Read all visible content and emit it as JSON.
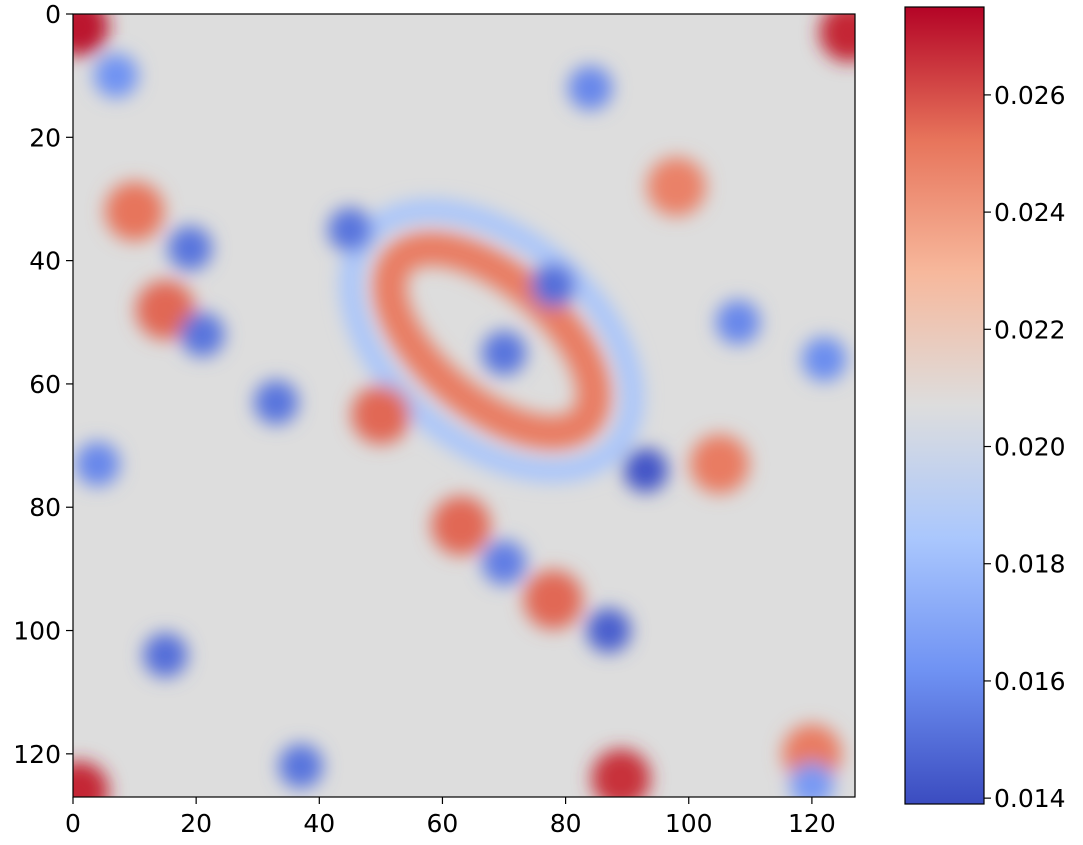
{
  "chart_data": {
    "type": "heatmap",
    "title": "",
    "xlabel": "",
    "ylabel": "",
    "grid_size": [
      128,
      128
    ],
    "xlim": [
      0,
      127
    ],
    "ylim": [
      127,
      0
    ],
    "x_ticks": [
      0,
      20,
      40,
      60,
      80,
      100,
      120
    ],
    "x_tick_labels": [
      "0",
      "20",
      "40",
      "60",
      "80",
      "100",
      "120"
    ],
    "y_ticks": [
      0,
      20,
      40,
      60,
      80,
      100,
      120
    ],
    "y_tick_labels": [
      "0",
      "20",
      "40",
      "60",
      "80",
      "100",
      "120"
    ],
    "colormap": "coolwarm",
    "colormap_stops": [
      "#3b4cc0",
      "#6f92f3",
      "#aac7fd",
      "#dddddd",
      "#f7b89c",
      "#e7745b",
      "#b40426"
    ],
    "vmin": 0.0139,
    "vmax": 0.0275,
    "colorbar": {
      "ticks": [
        0.014,
        0.016,
        0.018,
        0.02,
        0.022,
        0.024,
        0.026
      ],
      "tick_labels": [
        "0.014",
        "0.016",
        "0.018",
        "0.020",
        "0.022",
        "0.024",
        "0.026"
      ]
    },
    "features": {
      "hot_spots": [
        {
          "x": 1,
          "y": 2,
          "value": 0.0272
        },
        {
          "x": 126,
          "y": 3,
          "value": 0.0268
        },
        {
          "x": 1,
          "y": 126,
          "value": 0.0268
        },
        {
          "x": 89,
          "y": 124,
          "value": 0.0266
        },
        {
          "x": 63,
          "y": 83,
          "value": 0.0255
        },
        {
          "x": 78,
          "y": 95,
          "value": 0.0255
        },
        {
          "x": 15,
          "y": 48,
          "value": 0.0255
        },
        {
          "x": 10,
          "y": 32,
          "value": 0.0252
        },
        {
          "x": 50,
          "y": 65,
          "value": 0.0255
        },
        {
          "x": 105,
          "y": 73,
          "value": 0.025
        },
        {
          "x": 98,
          "y": 28,
          "value": 0.0248
        },
        {
          "x": 120,
          "y": 120,
          "value": 0.025
        }
      ],
      "cold_spots": [
        {
          "x": 93,
          "y": 74,
          "value": 0.0142
        },
        {
          "x": 87,
          "y": 100,
          "value": 0.0145
        },
        {
          "x": 21,
          "y": 52,
          "value": 0.0152
        },
        {
          "x": 45,
          "y": 35,
          "value": 0.0152
        },
        {
          "x": 78,
          "y": 44,
          "value": 0.015
        },
        {
          "x": 70,
          "y": 55,
          "value": 0.0152
        },
        {
          "x": 19,
          "y": 38,
          "value": 0.0152
        },
        {
          "x": 15,
          "y": 104,
          "value": 0.015
        },
        {
          "x": 37,
          "y": 122,
          "value": 0.0152
        },
        {
          "x": 33,
          "y": 63,
          "value": 0.0152
        },
        {
          "x": 70,
          "y": 89,
          "value": 0.0155
        },
        {
          "x": 84,
          "y": 12,
          "value": 0.0158
        },
        {
          "x": 108,
          "y": 50,
          "value": 0.0158
        },
        {
          "x": 4,
          "y": 73,
          "value": 0.0158
        },
        {
          "x": 7,
          "y": 10,
          "value": 0.0162
        },
        {
          "x": 122,
          "y": 56,
          "value": 0.016
        },
        {
          "x": 120,
          "y": 125,
          "value": 0.0165
        }
      ],
      "ring": {
        "center_x": 68,
        "center_y": 53,
        "description": "red elliptical ring around two blue spots"
      }
    }
  }
}
